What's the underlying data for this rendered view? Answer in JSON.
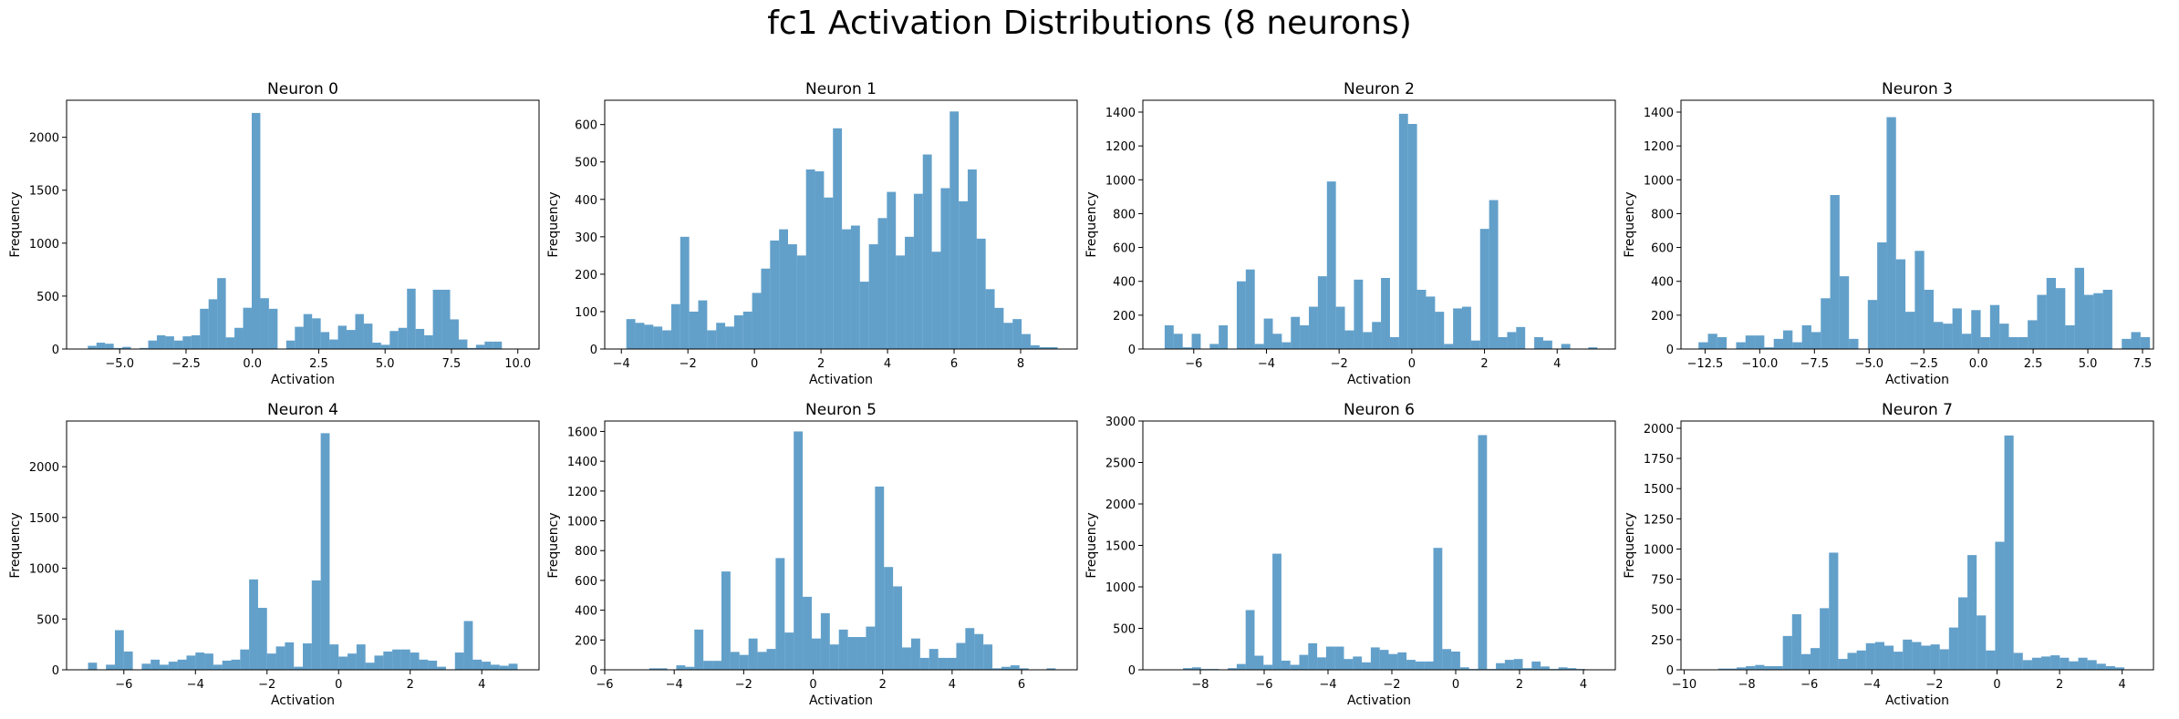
{
  "figure": {
    "title": "fc1 Activation Distributions (8 neurons)"
  },
  "chart_data": [
    {
      "type": "bar",
      "title": "Neuron 0",
      "xlabel": "Activation",
      "ylabel": "Frequency",
      "xlim": [
        -7.0,
        10.8
      ],
      "ylim": [
        0,
        2350
      ],
      "xticks": [
        -5.0,
        -2.5,
        0.0,
        2.5,
        5.0,
        7.5,
        10.0
      ],
      "xtick_labels": [
        "−5.0",
        "−2.5",
        "0.0",
        "2.5",
        "5.0",
        "7.5",
        "10.0"
      ],
      "yticks": [
        0,
        500,
        1000,
        1500,
        2000
      ],
      "ytick_labels": [
        "0",
        "500",
        "1000",
        "1500",
        "2000"
      ],
      "bins": {
        "start": -6.2,
        "width": 0.325,
        "counts": [
          30,
          60,
          50,
          10,
          20,
          0,
          10,
          80,
          130,
          120,
          80,
          120,
          130,
          380,
          470,
          670,
          110,
          200,
          390,
          2230,
          480,
          380,
          0,
          80,
          210,
          330,
          290,
          160,
          90,
          220,
          180,
          330,
          240,
          60,
          40,
          170,
          200,
          570,
          190,
          130,
          560,
          560,
          280,
          90,
          10,
          40,
          70,
          70
        ]
      }
    },
    {
      "type": "bar",
      "title": "Neuron 1",
      "xlabel": "Activation",
      "ylabel": "Frequency",
      "xlim": [
        -4.5,
        9.7
      ],
      "ylim": [
        0,
        665
      ],
      "xticks": [
        -4,
        -2,
        0,
        2,
        4,
        6,
        8
      ],
      "xtick_labels": [
        "−4",
        "−2",
        "0",
        "2",
        "4",
        "6",
        "8"
      ],
      "yticks": [
        0,
        100,
        200,
        300,
        400,
        500,
        600
      ],
      "ytick_labels": [
        "0",
        "100",
        "200",
        "300",
        "400",
        "500",
        "600"
      ],
      "bins": {
        "start": -3.85,
        "width": 0.27,
        "counts": [
          80,
          70,
          65,
          60,
          50,
          120,
          300,
          100,
          130,
          50,
          70,
          60,
          90,
          100,
          150,
          215,
          290,
          320,
          280,
          250,
          480,
          475,
          405,
          590,
          320,
          330,
          180,
          280,
          350,
          420,
          250,
          300,
          415,
          520,
          260,
          430,
          635,
          395,
          480,
          295,
          160,
          110,
          70,
          80,
          40,
          10,
          5,
          5
        ]
      }
    },
    {
      "type": "bar",
      "title": "Neuron 2",
      "xlabel": "Activation",
      "ylabel": "Frequency",
      "xlim": [
        -7.4,
        5.6
      ],
      "ylim": [
        0,
        1470
      ],
      "xticks": [
        -6,
        -4,
        -2,
        0,
        2,
        4
      ],
      "xtick_labels": [
        "−6",
        "−4",
        "−2",
        "0",
        "2",
        "4"
      ],
      "yticks": [
        0,
        200,
        400,
        600,
        800,
        1000,
        1200,
        1400
      ],
      "ytick_labels": [
        "0",
        "200",
        "400",
        "600",
        "800",
        "1000",
        "1200",
        "1400"
      ],
      "bins": {
        "start": -6.8,
        "width": 0.248,
        "counts": [
          140,
          90,
          10,
          90,
          0,
          30,
          140,
          0,
          400,
          470,
          30,
          180,
          90,
          40,
          190,
          140,
          250,
          430,
          990,
          250,
          110,
          410,
          100,
          160,
          420,
          70,
          1390,
          1330,
          350,
          310,
          220,
          30,
          240,
          250,
          50,
          710,
          880,
          70,
          100,
          130,
          0,
          70,
          50,
          0,
          30,
          0,
          0,
          10
        ]
      }
    },
    {
      "type": "bar",
      "title": "Neuron 3",
      "xlabel": "Activation",
      "ylabel": "Frequency",
      "xlim": [
        -13.6,
        8.0
      ],
      "ylim": [
        0,
        1470
      ],
      "xticks": [
        -12.5,
        -10.0,
        -7.5,
        -5.0,
        -2.5,
        0.0,
        2.5,
        5.0,
        7.5
      ],
      "xtick_labels": [
        "−12.5",
        "−10.0",
        "−7.5",
        "−5.0",
        "−2.5",
        "0.0",
        "2.5",
        "5.0",
        "7.5"
      ],
      "yticks": [
        0,
        200,
        400,
        600,
        800,
        1000,
        1200,
        1400
      ],
      "ytick_labels": [
        "0",
        "200",
        "400",
        "600",
        "800",
        "1000",
        "1200",
        "1400"
      ],
      "bins": {
        "start": -12.8,
        "width": 0.43,
        "counts": [
          40,
          90,
          70,
          0,
          40,
          80,
          80,
          10,
          60,
          110,
          40,
          140,
          100,
          300,
          910,
          430,
          60,
          0,
          290,
          630,
          1370,
          530,
          220,
          580,
          350,
          160,
          150,
          240,
          90,
          230,
          70,
          260,
          150,
          70,
          70,
          170,
          320,
          420,
          360,
          140,
          480,
          320,
          330,
          350,
          0,
          60,
          100,
          70
        ]
      }
    },
    {
      "type": "bar",
      "title": "Neuron 4",
      "xlabel": "Activation",
      "ylabel": "Frequency",
      "xlim": [
        -7.6,
        5.6
      ],
      "ylim": [
        0,
        2450
      ],
      "xticks": [
        -6,
        -4,
        -2,
        0,
        2,
        4
      ],
      "xtick_labels": [
        "−6",
        "−4",
        "−2",
        "0",
        "2",
        "4"
      ],
      "yticks": [
        0,
        500,
        1000,
        1500,
        2000
      ],
      "ytick_labels": [
        "0",
        "500",
        "1000",
        "1500",
        "2000"
      ],
      "bins": {
        "start": -7.0,
        "width": 0.25,
        "counts": [
          70,
          0,
          50,
          390,
          180,
          0,
          60,
          100,
          50,
          80,
          100,
          140,
          170,
          160,
          50,
          90,
          100,
          200,
          890,
          610,
          160,
          230,
          270,
          30,
          260,
          880,
          2330,
          250,
          130,
          160,
          250,
          70,
          140,
          180,
          200,
          200,
          170,
          100,
          90,
          30,
          0,
          170,
          480,
          100,
          80,
          50,
          40,
          60
        ]
      }
    },
    {
      "type": "bar",
      "title": "Neuron 5",
      "xlabel": "Activation",
      "ylabel": "Frequency",
      "xlim": [
        -6.0,
        7.6
      ],
      "ylim": [
        0,
        1670
      ],
      "xticks": [
        -6,
        -4,
        -2,
        0,
        2,
        4,
        6
      ],
      "xtick_labels": [
        "−6",
        "−4",
        "−2",
        "0",
        "2",
        "4",
        "6"
      ],
      "yticks": [
        0,
        200,
        400,
        600,
        800,
        1000,
        1200,
        1400,
        1600
      ],
      "ytick_labels": [
        "0",
        "200",
        "400",
        "600",
        "800",
        "1000",
        "1200",
        "1400",
        "1600"
      ],
      "bins": {
        "start": -5.5,
        "width": 0.26,
        "counts": [
          0,
          0,
          0,
          10,
          10,
          0,
          30,
          20,
          270,
          60,
          60,
          660,
          120,
          100,
          210,
          120,
          140,
          750,
          250,
          1600,
          490,
          210,
          380,
          170,
          270,
          220,
          220,
          290,
          1230,
          690,
          560,
          150,
          210,
          80,
          140,
          80,
          80,
          180,
          280,
          240,
          170,
          10,
          20,
          30,
          10,
          0,
          0,
          10
        ]
      }
    },
    {
      "type": "bar",
      "title": "Neuron 6",
      "xlabel": "Activation",
      "ylabel": "Frequency",
      "xlim": [
        -9.8,
        5.0
      ],
      "ylim": [
        0,
        3000
      ],
      "xticks": [
        -8,
        -6,
        -4,
        -2,
        0,
        2,
        4
      ],
      "xtick_labels": [
        "−8",
        "−6",
        "−4",
        "−2",
        "0",
        "2",
        "4"
      ],
      "yticks": [
        0,
        500,
        1000,
        1500,
        2000,
        2500,
        3000
      ],
      "ytick_labels": [
        "0",
        "500",
        "1000",
        "1500",
        "2000",
        "2500",
        "3000"
      ],
      "bins": {
        "start": -9.1,
        "width": 0.28,
        "counts": [
          0,
          0,
          20,
          30,
          10,
          10,
          0,
          20,
          70,
          720,
          170,
          60,
          1400,
          110,
          60,
          180,
          320,
          150,
          280,
          280,
          130,
          160,
          90,
          270,
          240,
          190,
          210,
          120,
          100,
          100,
          1470,
          250,
          220,
          30,
          10,
          2830,
          10,
          80,
          120,
          130,
          20,
          100,
          40,
          10,
          30,
          20,
          10,
          0
        ]
      }
    },
    {
      "type": "bar",
      "title": "Neuron 7",
      "xlabel": "Activation",
      "ylabel": "Frequency",
      "xlim": [
        -10.1,
        5.0
      ],
      "ylim": [
        0,
        2060
      ],
      "xticks": [
        -10,
        -8,
        -6,
        -4,
        -2,
        0,
        2,
        4
      ],
      "xtick_labels": [
        "−10",
        "−8",
        "−6",
        "−4",
        "−2",
        "0",
        "2",
        "4"
      ],
      "yticks": [
        0,
        250,
        500,
        750,
        1000,
        1250,
        1500,
        1750,
        2000
      ],
      "ytick_labels": [
        "0",
        "250",
        "500",
        "750",
        "1000",
        "1250",
        "1500",
        "1750",
        "2000"
      ],
      "bins": {
        "start": -9.5,
        "width": 0.295,
        "counts": [
          0,
          0,
          10,
          10,
          20,
          30,
          40,
          30,
          30,
          280,
          460,
          130,
          180,
          510,
          970,
          90,
          140,
          160,
          220,
          230,
          200,
          150,
          250,
          230,
          200,
          210,
          170,
          350,
          600,
          950,
          450,
          160,
          1060,
          1940,
          140,
          80,
          100,
          110,
          120,
          100,
          70,
          100,
          80,
          50,
          30,
          20,
          0,
          0
        ]
      }
    }
  ]
}
